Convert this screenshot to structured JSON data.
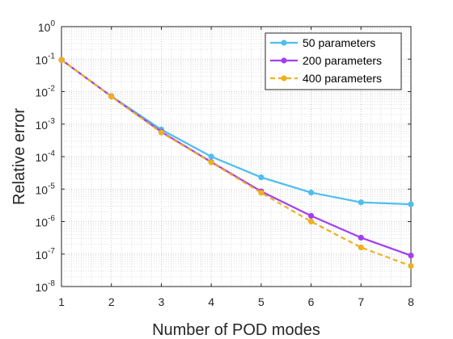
{
  "chart_data": {
    "type": "line",
    "xlabel": "Number of POD modes",
    "ylabel": "Relative error",
    "yscale": "log",
    "xlim": [
      1,
      8
    ],
    "ylim_exp": [
      -8,
      0
    ],
    "x_ticks": [
      1,
      2,
      3,
      4,
      5,
      6,
      7,
      8
    ],
    "y_tick_exponents": [
      -8,
      -7,
      -6,
      -5,
      -4,
      -3,
      -2,
      -1,
      0
    ],
    "grid": "major and minor (dotted)",
    "legend_position": "top-right",
    "x": [
      1,
      2,
      3,
      4,
      5,
      6,
      7,
      8
    ],
    "series": [
      {
        "name": "50 parameters",
        "color": "#4DBEEE",
        "style": "solid",
        "marker": "circle",
        "values": [
          0.095,
          0.0072,
          0.00068,
          0.0001,
          2.3e-05,
          7.8e-06,
          3.9e-06,
          3.4e-06
        ]
      },
      {
        "name": "200 parameters",
        "color": "#A23EF0",
        "style": "solid",
        "marker": "circle",
        "values": [
          0.095,
          0.0071,
          0.00058,
          6.8e-05,
          8.5e-06,
          1.5e-06,
          3.2e-07,
          9e-08
        ]
      },
      {
        "name": "400 parameters",
        "color": "#EDB120",
        "style": "dashed",
        "marker": "circle",
        "values": [
          0.095,
          0.007,
          0.00055,
          6.6e-05,
          7.7e-06,
          1e-06,
          1.6e-07,
          4.3e-08
        ]
      }
    ]
  }
}
